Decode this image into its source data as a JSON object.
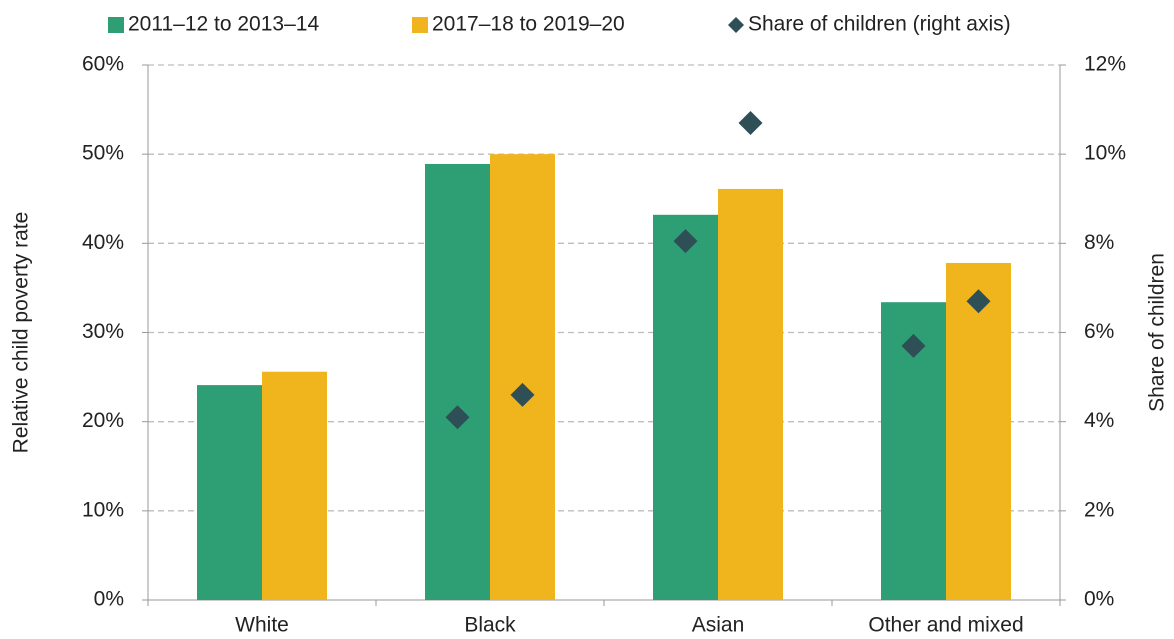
{
  "chart_data": {
    "type": "bar",
    "categories": [
      "White",
      "Black",
      "Asian",
      "Other and mixed"
    ],
    "series": [
      {
        "name": "2011–12 to 2013–14",
        "color": "#2e9e74",
        "values": [
          24.1,
          48.9,
          43.2,
          33.4
        ]
      },
      {
        "name": "2017–18 to 2019–20",
        "color": "#f0b41c",
        "values": [
          25.6,
          50.0,
          46.1,
          37.8
        ]
      },
      {
        "name": "Share of children (right axis)",
        "color": "#2f4f57",
        "axis": "y2",
        "marker": "diamond",
        "values": [
          [
            null,
            null
          ],
          [
            4.1,
            4.6
          ],
          [
            8.05,
            10.7
          ],
          [
            5.7,
            6.7
          ]
        ]
      }
    ],
    "ylabel": "Relative child poverty rate",
    "y2label": "Share of children",
    "ylim": [
      0,
      60
    ],
    "yticks": [
      {
        "value": 0,
        "label": "0%"
      },
      {
        "value": 10,
        "label": "10%"
      },
      {
        "value": 20,
        "label": "20%"
      },
      {
        "value": 30,
        "label": "30%"
      },
      {
        "value": 40,
        "label": "40%"
      },
      {
        "value": 50,
        "label": "50%"
      },
      {
        "value": 60,
        "label": "60%"
      }
    ],
    "y2lim": [
      0,
      12
    ],
    "y2ticks": [
      {
        "value": 0,
        "label": "0%"
      },
      {
        "value": 2,
        "label": "2%"
      },
      {
        "value": 4,
        "label": "4%"
      },
      {
        "value": 6,
        "label": "6%"
      },
      {
        "value": 8,
        "label": "8%"
      },
      {
        "value": 10,
        "label": "10%"
      },
      {
        "value": 12,
        "label": "12%"
      }
    ],
    "grid": true,
    "legend": "top"
  }
}
